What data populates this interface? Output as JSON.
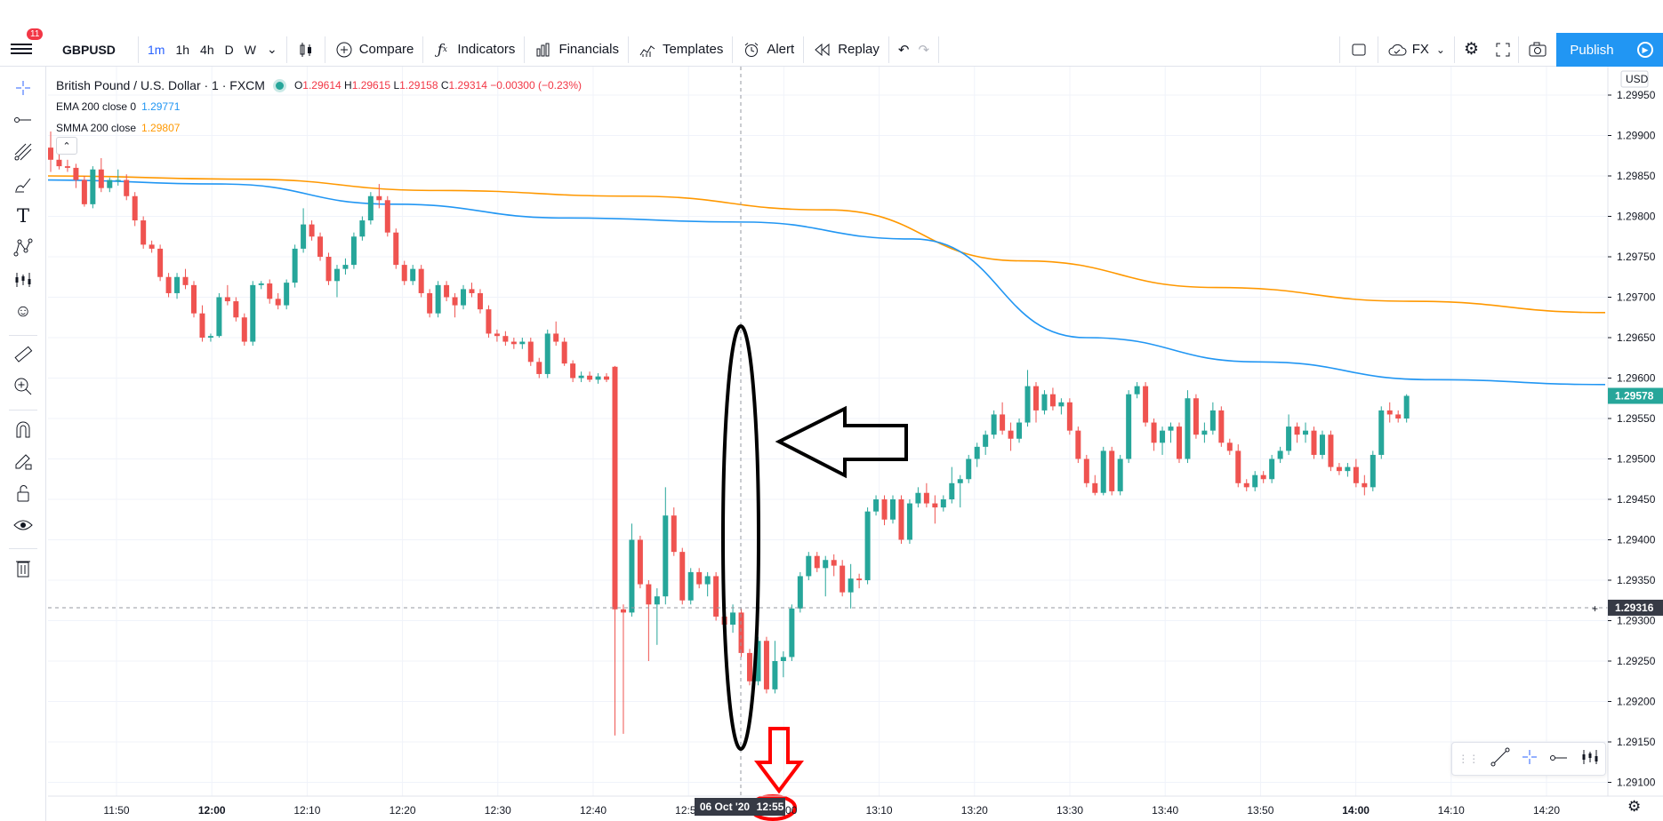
{
  "toolbar": {
    "notification_count": "11",
    "symbol": "GBPUSD",
    "intervals": [
      "1m",
      "1h",
      "4h",
      "D",
      "W"
    ],
    "active_interval": "1m",
    "compare_label": "Compare",
    "indicators_label": "Indicators",
    "financials_label": "Financials",
    "templates_label": "Templates",
    "alert_label": "Alert",
    "replay_label": "Replay",
    "fx_label": "FX",
    "publish_label": "Publish"
  },
  "legend": {
    "title": "British Pound / U.S. Dollar · 1 · FXCM",
    "open_label": "O",
    "open": "1.29614",
    "high_label": "H",
    "high": "1.29615",
    "low_label": "L",
    "low": "1.29158",
    "close_label": "C",
    "close": "1.29314",
    "change": "−0.00300 (−0.23%)",
    "ema_label": "EMA 200 close 0",
    "ema_value": "1.29771",
    "smma_label": "SMMA 200 close",
    "smma_value": "1.29807"
  },
  "colors": {
    "up": "#26a69a",
    "down": "#ef5350",
    "ema": "#2196f3",
    "smma": "#ff9800",
    "accent": "#2962ff"
  },
  "chart_data": {
    "type": "candlestick",
    "currency": "USD",
    "price_axis": [
      "1.29950",
      "1.29900",
      "1.29850",
      "1.29800",
      "1.29750",
      "1.29700",
      "1.29650",
      "1.29600",
      "1.29550",
      "1.29500",
      "1.29450",
      "1.29400",
      "1.29350",
      "1.29300",
      "1.29250",
      "1.29200",
      "1.29150",
      "1.29100"
    ],
    "ylim": [
      1.2907,
      1.2999
    ],
    "time_axis": [
      "11:50",
      "12:00",
      "12:10",
      "12:20",
      "12:30",
      "12:40",
      "12:50",
      "13:00",
      "13:10",
      "13:20",
      "13:30",
      "13:40",
      "13:50",
      "14:00",
      "14:10",
      "14:20"
    ],
    "highlight_date": "06 Oct '20",
    "highlight_time": "12:55",
    "last_price": "1.29578",
    "crosshair_price": "1.29316",
    "ema_200": [
      1.29845,
      1.2984,
      1.29815,
      1.29798,
      1.29793,
      1.29772,
      1.2965,
      1.2962,
      1.29598,
      1.29592
    ],
    "smma_200": [
      1.2985,
      1.29846,
      1.29832,
      1.29825,
      1.29808,
      1.29745,
      1.29712,
      1.29695,
      1.29681
    ],
    "candles": [
      [
        1.29885,
        1.29905,
        1.29855,
        1.2987
      ],
      [
        1.2987,
        1.2988,
        1.29858,
        1.29862
      ],
      [
        1.29862,
        1.2987,
        1.29855,
        1.2986
      ],
      [
        1.2986,
        1.29865,
        1.29835,
        1.29845
      ],
      [
        1.29845,
        1.2985,
        1.29812,
        1.29815
      ],
      [
        1.29815,
        1.29862,
        1.2981,
        1.29858
      ],
      [
        1.29858,
        1.29872,
        1.2983,
        1.29835
      ],
      [
        1.29835,
        1.29848,
        1.2983,
        1.29845
      ],
      [
        1.29845,
        1.29858,
        1.29838,
        1.29845
      ],
      [
        1.29845,
        1.29852,
        1.2982,
        1.29825
      ],
      [
        1.29825,
        1.2983,
        1.29788,
        1.29795
      ],
      [
        1.29795,
        1.298,
        1.2976,
        1.29765
      ],
      [
        1.29765,
        1.2977,
        1.29755,
        1.2976
      ],
      [
        1.2976,
        1.29765,
        1.2972,
        1.29725
      ],
      [
        1.29725,
        1.2973,
        1.297,
        1.29705
      ],
      [
        1.29705,
        1.2973,
        1.29698,
        1.29725
      ],
      [
        1.29725,
        1.29735,
        1.2971,
        1.29715
      ],
      [
        1.29715,
        1.2972,
        1.29675,
        1.2968
      ],
      [
        1.2968,
        1.2969,
        1.29645,
        1.2965
      ],
      [
        1.2965,
        1.29655,
        1.29645,
        1.29652
      ],
      [
        1.29652,
        1.29705,
        1.2965,
        1.297
      ],
      [
        1.297,
        1.29715,
        1.2969,
        1.29695
      ],
      [
        1.29695,
        1.297,
        1.2967,
        1.29675
      ],
      [
        1.29675,
        1.2968,
        1.2964,
        1.29645
      ],
      [
        1.29645,
        1.2972,
        1.2964,
        1.29715
      ],
      [
        1.29715,
        1.2972,
        1.2971,
        1.29717
      ],
      [
        1.29717,
        1.29722,
        1.29692,
        1.29698
      ],
      [
        1.29698,
        1.29705,
        1.29685,
        1.2969
      ],
      [
        1.2969,
        1.29722,
        1.29685,
        1.29718
      ],
      [
        1.29718,
        1.29765,
        1.29712,
        1.2976
      ],
      [
        1.2976,
        1.2981,
        1.29755,
        1.2979
      ],
      [
        1.2979,
        1.29795,
        1.2977,
        1.29775
      ],
      [
        1.29775,
        1.2978,
        1.29745,
        1.2975
      ],
      [
        1.2975,
        1.29755,
        1.29715,
        1.2972
      ],
      [
        1.2972,
        1.2974,
        1.297,
        1.29735
      ],
      [
        1.29735,
        1.29748,
        1.29728,
        1.2974
      ],
      [
        1.2974,
        1.2978,
        1.29735,
        1.29775
      ],
      [
        1.29775,
        1.298,
        1.2977,
        1.29795
      ],
      [
        1.29795,
        1.2983,
        1.2979,
        1.29825
      ],
      [
        1.29825,
        1.2984,
        1.2981,
        1.2982
      ],
      [
        1.2982,
        1.29825,
        1.29775,
        1.2978
      ],
      [
        1.2978,
        1.29785,
        1.29735,
        1.2974
      ],
      [
        1.2974,
        1.29745,
        1.29715,
        1.2972
      ],
      [
        1.2972,
        1.2974,
        1.29715,
        1.29735
      ],
      [
        1.29735,
        1.2974,
        1.297,
        1.29705
      ],
      [
        1.29705,
        1.2971,
        1.29675,
        1.2968
      ],
      [
        1.2968,
        1.2972,
        1.29675,
        1.29715
      ],
      [
        1.29715,
        1.2972,
        1.29695,
        1.297
      ],
      [
        1.297,
        1.29705,
        1.29675,
        1.2969
      ],
      [
        1.2969,
        1.29715,
        1.29685,
        1.2971
      ],
      [
        1.2971,
        1.29718,
        1.297,
        1.29705
      ],
      [
        1.29705,
        1.2971,
        1.2968,
        1.29685
      ],
      [
        1.29685,
        1.2969,
        1.2965,
        1.29655
      ],
      [
        1.29655,
        1.2966,
        1.29645,
        1.29652
      ],
      [
        1.29652,
        1.29658,
        1.2964,
        1.29645
      ],
      [
        1.29645,
        1.2965,
        1.29636,
        1.29642
      ],
      [
        1.29642,
        1.2965,
        1.29636,
        1.29645
      ],
      [
        1.29645,
        1.2965,
        1.29615,
        1.2962
      ],
      [
        1.2962,
        1.29625,
        1.296,
        1.29605
      ],
      [
        1.29605,
        1.2966,
        1.296,
        1.29655
      ],
      [
        1.29655,
        1.2967,
        1.2964,
        1.29645
      ],
      [
        1.29645,
        1.2965,
        1.29615,
        1.29618
      ],
      [
        1.29618,
        1.29622,
        1.29595,
        1.296
      ],
      [
        1.296,
        1.29608,
        1.29595,
        1.29603
      ],
      [
        1.29603,
        1.29608,
        1.29595,
        1.29598
      ],
      [
        1.29598,
        1.29606,
        1.29593,
        1.29602
      ],
      [
        1.29602,
        1.29606,
        1.29595,
        1.29598
      ],
      [
        1.29614,
        1.29615,
        1.29158,
        1.29314
      ],
      [
        1.29314,
        1.2932,
        1.2916,
        1.2931
      ],
      [
        1.2931,
        1.2942,
        1.29305,
        1.294
      ],
      [
        1.294,
        1.29405,
        1.2934,
        1.29345
      ],
      [
        1.29345,
        1.2935,
        1.2925,
        1.2932
      ],
      [
        1.2932,
        1.2934,
        1.2927,
        1.2933
      ],
      [
        1.2933,
        1.29465,
        1.2932,
        1.2943
      ],
      [
        1.2943,
        1.2944,
        1.2938,
        1.29385
      ],
      [
        1.29385,
        1.2939,
        1.2932,
        1.29325
      ],
      [
        1.29325,
        1.29365,
        1.2932,
        1.2936
      ],
      [
        1.2936,
        1.29365,
        1.2934,
        1.29345
      ],
      [
        1.29345,
        1.2936,
        1.2933,
        1.29355
      ],
      [
        1.29355,
        1.2936,
        1.293,
        1.29305
      ],
      [
        1.29305,
        1.2932,
        1.2928,
        1.29295
      ],
      [
        1.29295,
        1.2932,
        1.29285,
        1.2931
      ],
      [
        1.2931,
        1.29315,
        1.29255,
        1.2926
      ],
      [
        1.2926,
        1.29265,
        1.2922,
        1.29225
      ],
      [
        1.29225,
        1.2928,
        1.2922,
        1.29275
      ],
      [
        1.29275,
        1.2928,
        1.2921,
        1.29215
      ],
      [
        1.29215,
        1.29275,
        1.2921,
        1.2925
      ],
      [
        1.2925,
        1.29262,
        1.2923,
        1.29255
      ],
      [
        1.29255,
        1.2932,
        1.2925,
        1.29315
      ],
      [
        1.29315,
        1.2936,
        1.2931,
        1.29355
      ],
      [
        1.29355,
        1.29385,
        1.2935,
        1.2938
      ],
      [
        1.2938,
        1.29385,
        1.2936,
        1.29365
      ],
      [
        1.29365,
        1.2938,
        1.2933,
        1.29375
      ],
      [
        1.29375,
        1.29382,
        1.29355,
        1.29368
      ],
      [
        1.29368,
        1.29375,
        1.2933,
        1.29335
      ],
      [
        1.29335,
        1.2937,
        1.29315,
        1.29352
      ],
      [
        1.29352,
        1.29358,
        1.2934,
        1.2935
      ],
      [
        1.2935,
        1.2944,
        1.29345,
        1.29435
      ],
      [
        1.29435,
        1.29455,
        1.2943,
        1.2945
      ],
      [
        1.2945,
        1.29455,
        1.29418,
        1.29425
      ],
      [
        1.29425,
        1.29455,
        1.2942,
        1.2945
      ],
      [
        1.2945,
        1.29455,
        1.29395,
        1.294
      ],
      [
        1.294,
        1.2945,
        1.29395,
        1.29445
      ],
      [
        1.29445,
        1.29465,
        1.2944,
        1.29458
      ],
      [
        1.29458,
        1.2947,
        1.2944,
        1.29445
      ],
      [
        1.29445,
        1.29455,
        1.2942,
        1.2944
      ],
      [
        1.2944,
        1.29455,
        1.29435,
        1.2945
      ],
      [
        1.2945,
        1.2949,
        1.29445,
        1.2947
      ],
      [
        1.2947,
        1.2948,
        1.2944,
        1.29475
      ],
      [
        1.29475,
        1.29505,
        1.2947,
        1.295
      ],
      [
        1.295,
        1.2952,
        1.2949,
        1.29515
      ],
      [
        1.29515,
        1.29535,
        1.29505,
        1.2953
      ],
      [
        1.2953,
        1.2956,
        1.29525,
        1.29555
      ],
      [
        1.29555,
        1.2957,
        1.2953,
        1.29535
      ],
      [
        1.29535,
        1.29545,
        1.2951,
        1.29525
      ],
      [
        1.29525,
        1.2955,
        1.2952,
        1.29545
      ],
      [
        1.29545,
        1.2961,
        1.2954,
        1.2959
      ],
      [
        1.2959,
        1.29595,
        1.29545,
        1.2956
      ],
      [
        1.2956,
        1.29585,
        1.29555,
        1.2958
      ],
      [
        1.2958,
        1.29588,
        1.2956,
        1.29565
      ],
      [
        1.29565,
        1.29575,
        1.29555,
        1.2957
      ],
      [
        1.2957,
        1.29575,
        1.2953,
        1.29535
      ],
      [
        1.29535,
        1.2954,
        1.29495,
        1.295
      ],
      [
        1.295,
        1.29505,
        1.29465,
        1.2947
      ],
      [
        1.2947,
        1.2948,
        1.29455,
        1.29458
      ],
      [
        1.29458,
        1.29515,
        1.29455,
        1.2951
      ],
      [
        1.2951,
        1.29515,
        1.29455,
        1.2946
      ],
      [
        1.2946,
        1.29505,
        1.29455,
        1.295
      ],
      [
        1.295,
        1.29585,
        1.29495,
        1.2958
      ],
      [
        1.2958,
        1.29595,
        1.29575,
        1.2959
      ],
      [
        1.2959,
        1.29595,
        1.2954,
        1.29545
      ],
      [
        1.29545,
        1.2955,
        1.2951,
        1.2952
      ],
      [
        1.2952,
        1.2954,
        1.29505,
        1.29535
      ],
      [
        1.29535,
        1.29545,
        1.2952,
        1.2954
      ],
      [
        1.2954,
        1.29545,
        1.29495,
        1.295
      ],
      [
        1.295,
        1.29585,
        1.29495,
        1.29575
      ],
      [
        1.29575,
        1.2958,
        1.29525,
        1.2953
      ],
      [
        1.2953,
        1.29545,
        1.2952,
        1.29535
      ],
      [
        1.29535,
        1.2957,
        1.2953,
        1.2956
      ],
      [
        1.2956,
        1.29565,
        1.29515,
        1.2952
      ],
      [
        1.2952,
        1.29525,
        1.29505,
        1.2951
      ],
      [
        1.2951,
        1.29518,
        1.29465,
        1.2947
      ],
      [
        1.2947,
        1.29475,
        1.2946,
        1.29465
      ],
      [
        1.29465,
        1.29485,
        1.2946,
        1.2948
      ],
      [
        1.2948,
        1.29485,
        1.2947,
        1.29475
      ],
      [
        1.29475,
        1.29505,
        1.2947,
        1.295
      ],
      [
        1.295,
        1.29515,
        1.29495,
        1.2951
      ],
      [
        1.2951,
        1.29555,
        1.29505,
        1.2954
      ],
      [
        1.2954,
        1.29545,
        1.2952,
        1.2953
      ],
      [
        1.2953,
        1.29545,
        1.2952,
        1.29535
      ],
      [
        1.29535,
        1.2954,
        1.295,
        1.29505
      ],
      [
        1.29505,
        1.29535,
        1.295,
        1.2953
      ],
      [
        1.2953,
        1.29535,
        1.29485,
        1.2949
      ],
      [
        1.2949,
        1.29495,
        1.2948,
        1.29485
      ],
      [
        1.29485,
        1.29495,
        1.29478,
        1.2949
      ],
      [
        1.2949,
        1.295,
        1.29465,
        1.2947
      ],
      [
        1.2947,
        1.2948,
        1.29455,
        1.29465
      ],
      [
        1.29465,
        1.2951,
        1.2946,
        1.29505
      ],
      [
        1.29505,
        1.29565,
        1.295,
        1.2956
      ],
      [
        1.2956,
        1.2957,
        1.29545,
        1.29555
      ],
      [
        1.29555,
        1.2956,
        1.29545,
        1.2955
      ],
      [
        1.2955,
        1.2958,
        1.29545,
        1.29578
      ]
    ]
  }
}
